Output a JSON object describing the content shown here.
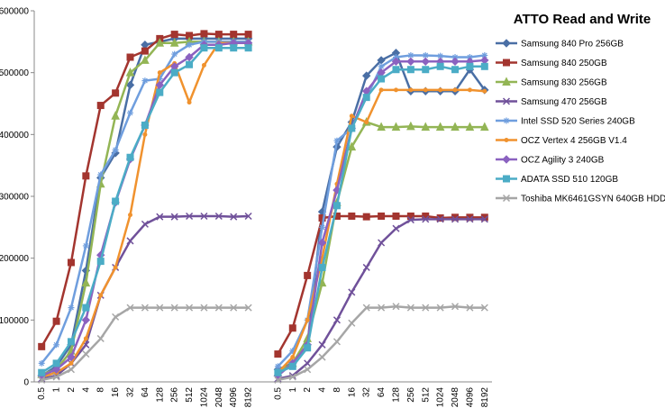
{
  "chart_data": {
    "type": "line",
    "title": "ATTO Read and Write",
    "categories": [
      "0.5",
      "1",
      "2",
      "4",
      "8",
      "16",
      "32",
      "64",
      "128",
      "256",
      "512",
      "1024",
      "2048",
      "4096",
      "8192",
      null,
      "0.5",
      "1",
      "2",
      "4",
      "8",
      "16",
      "32",
      "64",
      "128",
      "256",
      "512",
      "1024",
      "2048",
      "4096",
      "8192"
    ],
    "ylim": [
      0,
      600000
    ],
    "yticks": [
      0,
      100000,
      200000,
      300000,
      400000,
      500000,
      600000
    ],
    "grid": false,
    "series": [
      {
        "name": "Samsung 840 Pro 256GB",
        "color": "#4a6fa5",
        "marker": "diamond",
        "values": [
          10000,
          25000,
          60000,
          180000,
          330000,
          370000,
          480000,
          545000,
          550000,
          555000,
          555000,
          555000,
          555000,
          555000,
          555000,
          null,
          20000,
          30000,
          60000,
          275000,
          380000,
          420000,
          495000,
          520000,
          532000,
          470000,
          470000,
          470000,
          470000,
          505000,
          472000
        ]
      },
      {
        "name": "Samsung 840 250GB",
        "color": "#a3352f",
        "marker": "square",
        "values": [
          57000,
          98000,
          193000,
          333000,
          447000,
          467000,
          525000,
          535000,
          555000,
          562000,
          560000,
          563000,
          562000,
          562000,
          562000,
          null,
          45000,
          87000,
          172000,
          265000,
          268000,
          268000,
          267000,
          268000,
          268000,
          268000,
          268000,
          265000,
          266000,
          266000,
          266000
        ]
      },
      {
        "name": "Samsung 830 256GB",
        "color": "#93b555",
        "marker": "triangle",
        "values": [
          12000,
          20000,
          50000,
          160000,
          320000,
          430000,
          500000,
          520000,
          548000,
          548000,
          550000,
          550000,
          550000,
          550000,
          550000,
          null,
          15000,
          30000,
          70000,
          160000,
          290000,
          380000,
          420000,
          412000,
          412000,
          413000,
          412000,
          412000,
          412000,
          412000,
          412000
        ]
      },
      {
        "name": "Samsung 470 256GB",
        "color": "#70519a",
        "marker": "x",
        "values": [
          5000,
          10000,
          30000,
          60000,
          140000,
          185000,
          228000,
          255000,
          267000,
          267000,
          268000,
          268000,
          268000,
          267000,
          268000,
          null,
          5000,
          10000,
          30000,
          60000,
          100000,
          145000,
          185000,
          225000,
          248000,
          262000,
          263000,
          263000,
          263000,
          263000,
          263000
        ]
      },
      {
        "name": "Intel SSD 520 Series 240GB",
        "color": "#6f9ede",
        "marker": "star",
        "values": [
          30000,
          60000,
          120000,
          220000,
          335000,
          375000,
          435000,
          487000,
          490000,
          530000,
          545000,
          550000,
          550000,
          550000,
          550000,
          null,
          25000,
          50000,
          100000,
          250000,
          390000,
          410000,
          460000,
          510000,
          525000,
          528000,
          528000,
          527000,
          525000,
          525000,
          528000
        ]
      },
      {
        "name": "OCZ Vertex 4 256GB V1.4",
        "color": "#f0922e",
        "marker": "circle",
        "values": [
          8000,
          15000,
          30000,
          70000,
          140000,
          185000,
          270000,
          400000,
          500000,
          515000,
          452000,
          512000,
          548000,
          548000,
          548000,
          null,
          15000,
          40000,
          100000,
          200000,
          320000,
          430000,
          420000,
          472000,
          472000,
          472000,
          472000,
          472000,
          472000,
          472000,
          470000
        ]
      },
      {
        "name": "OCZ Agility 3 240GB",
        "color": "#8b62c0",
        "marker": "diamond",
        "values": [
          10000,
          20000,
          40000,
          100000,
          205000,
          290000,
          360000,
          415000,
          480000,
          510000,
          525000,
          545000,
          545000,
          548000,
          548000,
          null,
          10000,
          30000,
          60000,
          225000,
          310000,
          410000,
          470000,
          500000,
          518000,
          518000,
          518000,
          518000,
          518000,
          518000,
          520000
        ]
      },
      {
        "name": "ADATA SSD 510 120GB",
        "color": "#4bacc6",
        "marker": "square",
        "values": [
          15000,
          30000,
          65000,
          120000,
          195000,
          292000,
          363000,
          415000,
          468000,
          500000,
          513000,
          540000,
          540000,
          540000,
          540000,
          null,
          15000,
          25000,
          55000,
          185000,
          285000,
          410000,
          460000,
          490000,
          505000,
          505000,
          505000,
          510000,
          505000,
          510000,
          510000
        ]
      },
      {
        "name": "Toshiba MK6461GSYN 640GB HDD",
        "color": "#a6a6a6",
        "marker": "x",
        "values": [
          3000,
          8000,
          20000,
          45000,
          70000,
          105000,
          120000,
          120000,
          120000,
          120000,
          120000,
          120000,
          120000,
          120000,
          120000,
          null,
          3000,
          8000,
          20000,
          40000,
          65000,
          95000,
          120000,
          120000,
          122000,
          120000,
          120000,
          120000,
          122000,
          120000,
          120000
        ]
      }
    ]
  }
}
